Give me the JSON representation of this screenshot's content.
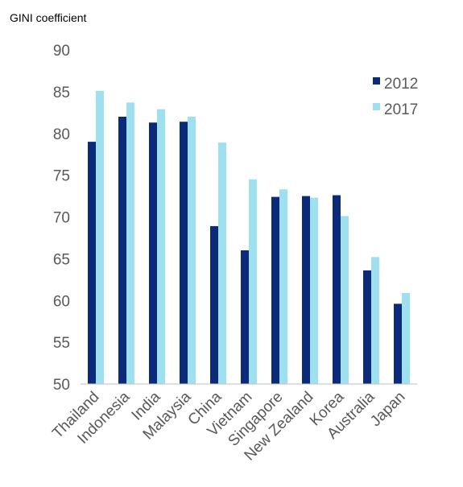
{
  "chart_data": {
    "type": "bar",
    "ylabel": "GINI coefficient",
    "ylim": [
      50,
      90
    ],
    "yticks": [
      50,
      55,
      60,
      65,
      70,
      75,
      80,
      85,
      90
    ],
    "grid": false,
    "legend_position": "top-right",
    "categories": [
      "Thailand",
      "Indonesia",
      "India",
      "Malaysia",
      "China",
      "Vietnam",
      "Singapore",
      "New Zealand",
      "Korea",
      "Australia",
      "Japan"
    ],
    "series": [
      {
        "name": "2012",
        "color": "#0b2a7a",
        "values": [
          79.0,
          82.0,
          81.3,
          81.4,
          68.9,
          66.0,
          72.4,
          72.5,
          72.6,
          63.6,
          59.6
        ]
      },
      {
        "name": "2017",
        "color": "#9ee0ee",
        "values": [
          85.1,
          83.7,
          82.9,
          82.0,
          78.9,
          74.5,
          73.3,
          72.3,
          70.1,
          65.2,
          60.9
        ]
      }
    ]
  }
}
